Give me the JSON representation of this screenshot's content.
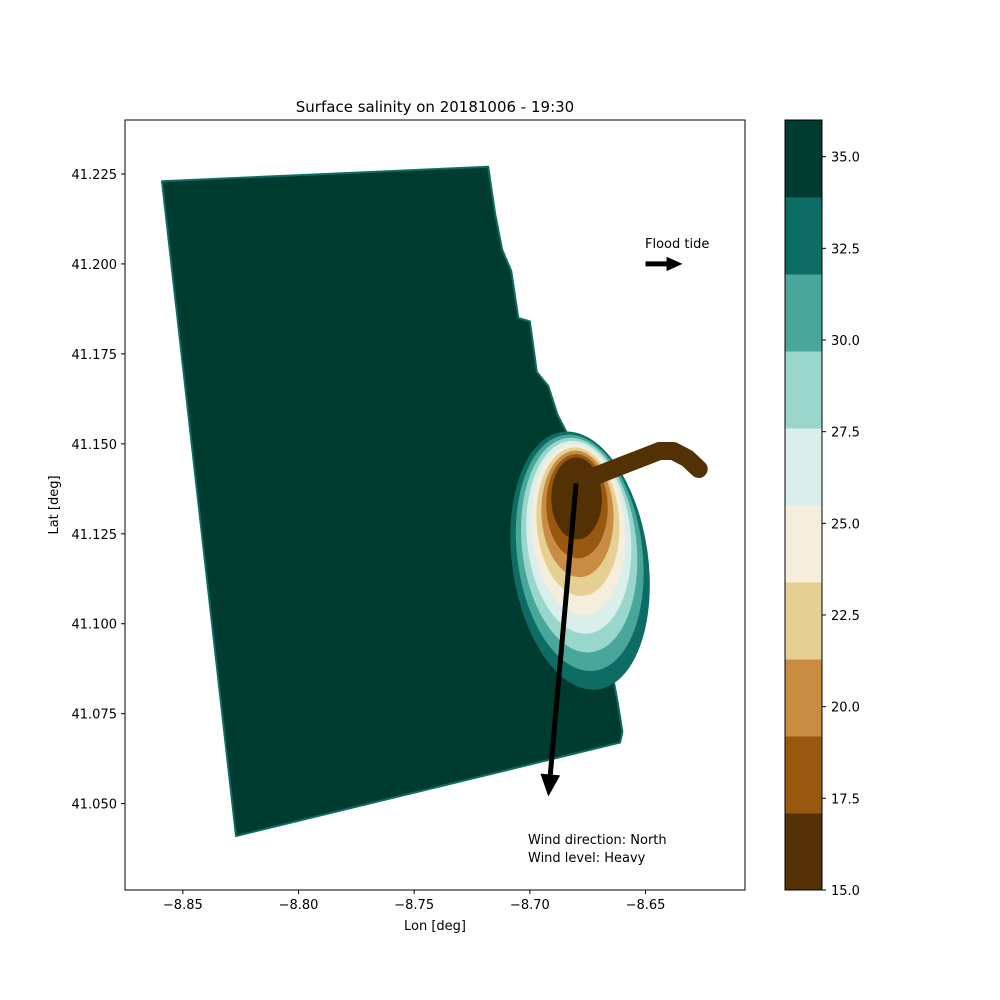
{
  "chart_data": {
    "type": "scatter",
    "title": "Surface salinity on 20181006 - 19:30",
    "xlabel": "Lon [deg]",
    "ylabel": "Lat [deg]",
    "xlim": [
      -8.875,
      -8.607
    ],
    "ylim": [
      41.026,
      41.24
    ],
    "x_ticks": [
      -8.85,
      -8.8,
      -8.75,
      -8.7,
      -8.65
    ],
    "x_tick_labels": [
      "−8.85",
      "−8.80",
      "−8.75",
      "−8.70",
      "−8.65"
    ],
    "y_ticks": [
      41.05,
      41.075,
      41.1,
      41.125,
      41.15,
      41.175,
      41.2,
      41.225
    ],
    "y_tick_labels": [
      "41.050",
      "41.075",
      "41.100",
      "41.125",
      "41.150",
      "41.175",
      "41.200",
      "41.225"
    ],
    "grid": false,
    "colorbar": {
      "label": "",
      "range": [
        15.0,
        36.0
      ],
      "levels": [
        15.0,
        17.1,
        19.2,
        21.3,
        23.4,
        25.5,
        27.6,
        29.7,
        31.8,
        33.9,
        36.0
      ],
      "colors": [
        "#543005",
        "#985810",
        "#c88d42",
        "#e6cf92",
        "#f5eedc",
        "#daefeb",
        "#99d7cc",
        "#48a69a",
        "#0d6d64",
        "#003b30"
      ],
      "ticks": [
        15.0,
        17.5,
        20.0,
        22.5,
        25.0,
        27.5,
        30.0,
        32.5,
        35.0
      ],
      "tick_labels": [
        "15.0",
        "17.5",
        "20.0",
        "22.5",
        "25.0",
        "27.5",
        "30.0",
        "32.5",
        "35.0"
      ]
    },
    "ocean_domain_outline": {
      "lon": [
        -8.859,
        -8.718,
        -8.715,
        -8.712,
        -8.708,
        -8.705,
        -8.7,
        -8.697,
        -8.692,
        -8.688,
        -8.684,
        -8.68,
        -8.677,
        -8.673,
        -8.67,
        -8.668,
        -8.666,
        -8.664,
        -8.662,
        -8.66,
        -8.661,
        -8.827
      ],
      "lat": [
        41.223,
        41.227,
        41.214,
        41.204,
        41.198,
        41.185,
        41.184,
        41.17,
        41.166,
        41.158,
        41.153,
        41.145,
        41.127,
        41.118,
        41.108,
        41.1,
        41.093,
        41.085,
        41.078,
        41.07,
        41.067,
        41.041
      ]
    },
    "river_plume": {
      "description_levels": "low salinity at estuary mouth grading to ocean values",
      "core_salinity": 16.0,
      "center_lon": -8.68,
      "center_lat": 41.137
    },
    "estuary_channel": {
      "salinity": 15.5,
      "lon": [
        -8.676,
        -8.668,
        -8.66,
        -8.652,
        -8.644,
        -8.638,
        -8.632,
        -8.627
      ],
      "lat": [
        41.14,
        41.142,
        41.144,
        41.146,
        41.148,
        41.148,
        41.146,
        41.143
      ]
    },
    "annotations": {
      "flood_tide_label": "Flood tide",
      "flood_tide_arrow": {
        "lon": -8.65,
        "lat": 41.2,
        "dlon": 0.016,
        "dlat": 0.0
      },
      "wind_arrow": {
        "lon": -8.68,
        "lat": 41.139,
        "dlon": -0.012,
        "dlat": -0.087
      },
      "wind_direction_text": "Wind direction: North",
      "wind_level_text": "Wind level: Heavy"
    }
  }
}
